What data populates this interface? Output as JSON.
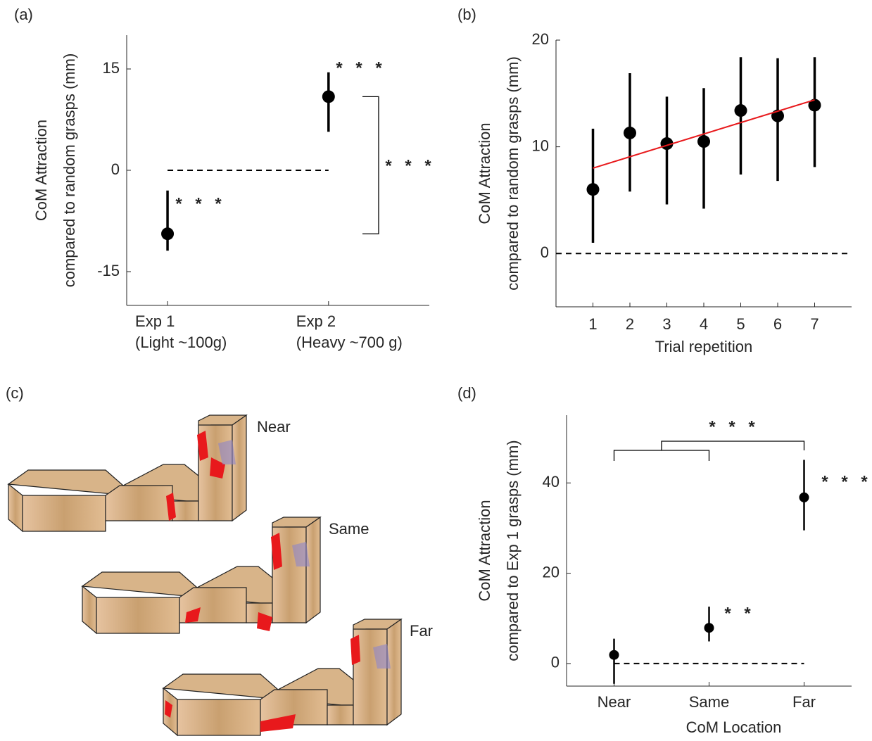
{
  "chart_data": [
    {
      "type": "errorbar",
      "panel_label": "(a)",
      "ylabel": [
        "CoM Attraction",
        "compared to random grasps (mm)"
      ],
      "categories": [
        "Exp 1",
        "Exp 2"
      ],
      "category_sublabels": [
        "(Light ~100g)",
        "(Heavy ~700 g)"
      ],
      "values": [
        -9.4,
        10.9
      ],
      "lower": [
        -11.9,
        5.7
      ],
      "upper": [
        -3.0,
        14.5
      ],
      "color": "#000000",
      "ylim": [
        -20,
        20
      ],
      "yticks": [
        -15,
        0,
        15
      ],
      "reference_line": 0,
      "annotations": [
        "* * *",
        "* * *",
        "* * *"
      ]
    },
    {
      "type": "errorbar",
      "panel_label": "(b)",
      "ylabel": [
        "CoM Attraction",
        "compared to random grasps (mm)"
      ],
      "xlabel": "Trial repetition",
      "x": [
        1,
        2,
        3,
        4,
        5,
        6,
        7
      ],
      "values": [
        6.0,
        11.3,
        10.3,
        10.5,
        13.4,
        12.9,
        13.9
      ],
      "lower": [
        1.0,
        5.8,
        4.6,
        4.2,
        7.4,
        6.8,
        8.1
      ],
      "upper": [
        11.7,
        16.9,
        14.7,
        15.5,
        18.4,
        18.3,
        18.4
      ],
      "color": "#000000",
      "fit": {
        "x": [
          1,
          7
        ],
        "values": [
          8.0,
          14.4
        ],
        "color": "#e8191c"
      },
      "xlim": [
        0,
        8
      ],
      "xticks": [
        1,
        2,
        3,
        4,
        5,
        6,
        7
      ],
      "ylim": [
        -5,
        20
      ],
      "yticks": [
        0,
        10,
        20
      ],
      "reference_line": 0
    },
    {
      "type": "errorbar",
      "panel_label": "(d)",
      "ylabel": [
        "CoM Attraction",
        "compared to Exp 1 grasps (mm)"
      ],
      "xlabel": "CoM Location",
      "categories": [
        "Near",
        "Same",
        "Far"
      ],
      "values": [
        1.9,
        7.9,
        36.8
      ],
      "lower": [
        -4.5,
        4.9,
        29.5
      ],
      "upper": [
        5.5,
        12.6,
        45.1
      ],
      "color": "#000000",
      "ylim": [
        -5,
        55
      ],
      "yticks": [
        0,
        20,
        40
      ],
      "reference_line": 0,
      "annotations": [
        "* * *",
        "* * *",
        "* *"
      ]
    }
  ],
  "illustration": {
    "panel_label": "(c)",
    "labels": [
      "Near",
      "Same",
      "Far"
    ]
  }
}
